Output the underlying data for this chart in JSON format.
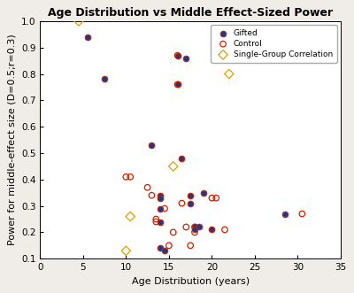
{
  "title": "Age Distribution vs Middle Effect-Sized Power",
  "xlabel": "Age Distribution (years)",
  "ylabel": "Power for middle-effect size (D=0.5;r=0.3)",
  "xlim": [
    0,
    35
  ],
  "ylim": [
    0.1,
    1.0
  ],
  "xticks": [
    0,
    5,
    10,
    15,
    20,
    25,
    30,
    35
  ],
  "yticks": [
    0.1,
    0.2,
    0.3,
    0.4,
    0.5,
    0.6,
    0.7,
    0.8,
    0.9,
    1.0
  ],
  "gifted": [
    [
      5.5,
      0.94
    ],
    [
      7.5,
      0.78
    ],
    [
      13.0,
      0.53
    ],
    [
      14.0,
      0.34
    ],
    [
      14.0,
      0.33
    ],
    [
      14.0,
      0.29
    ],
    [
      14.0,
      0.24
    ],
    [
      14.0,
      0.14
    ],
    [
      14.5,
      0.13
    ],
    [
      16.0,
      0.87
    ],
    [
      16.0,
      0.76
    ],
    [
      16.5,
      0.48
    ],
    [
      17.0,
      0.86
    ],
    [
      17.5,
      0.34
    ],
    [
      17.5,
      0.31
    ],
    [
      18.0,
      0.22
    ],
    [
      18.0,
      0.21
    ],
    [
      18.5,
      0.22
    ],
    [
      19.0,
      0.35
    ],
    [
      20.0,
      0.21
    ],
    [
      28.5,
      0.27
    ]
  ],
  "control": [
    [
      10.0,
      0.41
    ],
    [
      10.5,
      0.41
    ],
    [
      12.5,
      0.37
    ],
    [
      13.0,
      0.34
    ],
    [
      13.5,
      0.25
    ],
    [
      13.5,
      0.24
    ],
    [
      14.5,
      0.29
    ],
    [
      15.0,
      0.15
    ],
    [
      15.5,
      0.2
    ],
    [
      16.0,
      0.87
    ],
    [
      16.0,
      0.76
    ],
    [
      16.5,
      0.31
    ],
    [
      17.0,
      0.22
    ],
    [
      17.5,
      0.15
    ],
    [
      18.0,
      0.22
    ],
    [
      18.0,
      0.2
    ],
    [
      20.0,
      0.33
    ],
    [
      20.5,
      0.33
    ],
    [
      21.5,
      0.21
    ],
    [
      30.5,
      0.27
    ]
  ],
  "single_group": [
    [
      4.5,
      1.0
    ],
    [
      10.0,
      0.13
    ],
    [
      15.5,
      0.45
    ],
    [
      22.0,
      0.8
    ],
    [
      10.5,
      0.26
    ]
  ],
  "gifted_fill": "#1a3a8f",
  "gifted_edge": "#cc2200",
  "control_face": "none",
  "control_edge": "#cc2200",
  "single_group_face": "none",
  "single_group_edge": "#DAA000",
  "fig_facecolor": "#f0ede8",
  "axes_facecolor": "#ffffff",
  "title_fontsize": 9,
  "label_fontsize": 8,
  "tick_fontsize": 7.5
}
